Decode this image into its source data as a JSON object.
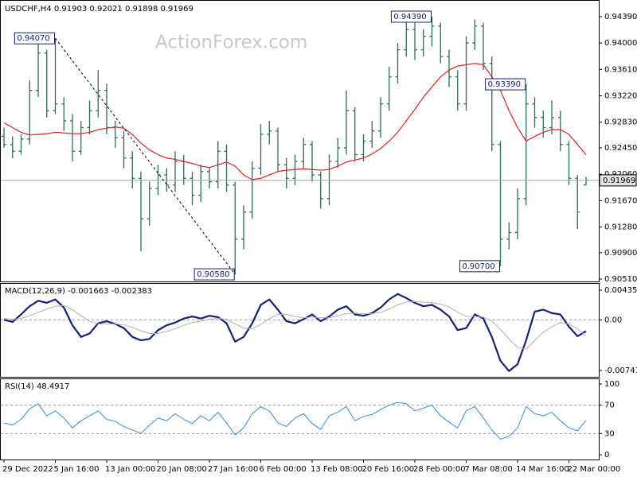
{
  "chart_data": [
    {
      "type": "ohlc",
      "title": "USDCHF,H4",
      "watermark": "ActionForex.com",
      "categories": [
        "29 Dec 2022",
        null,
        null,
        null,
        null,
        null,
        "5 Jan 16:00",
        null,
        null,
        null,
        null,
        null,
        "13 Jan 00:00",
        null,
        null,
        null,
        null,
        null,
        "20 Jan 08:00",
        null,
        null,
        null,
        null,
        null,
        "27 Jan 16:00",
        null,
        null,
        null,
        null,
        null,
        "6 Feb 00:00",
        null,
        null,
        null,
        null,
        null,
        "13 Feb 08:00",
        null,
        null,
        null,
        null,
        null,
        "20 Feb 16:00",
        null,
        null,
        null,
        null,
        null,
        "28 Feb 00:00",
        null,
        null,
        null,
        null,
        null,
        "7 Mar 08:00",
        null,
        null,
        null,
        null,
        null,
        "14 Mar 16:00",
        null,
        null,
        null,
        null,
        null,
        "22 Mar 00:00",
        null,
        null
      ],
      "series": [
        {
          "color": "#2f6b5e",
          "open": [
            0.9262,
            0.925,
            0.924,
            0.9258,
            0.933,
            0.9385,
            0.93,
            0.931,
            0.9285,
            0.924,
            0.9275,
            0.93,
            0.933,
            0.9275,
            0.926,
            0.923,
            0.92,
            0.914,
            0.9185,
            0.9205,
            0.919,
            0.9225,
            0.92,
            0.9175,
            0.921,
            0.9195,
            0.924,
            0.919,
            0.911,
            0.915,
            0.9215,
            0.9265,
            0.927,
            0.922,
            0.92,
            0.9225,
            0.925,
            0.9205,
            0.917,
            0.9225,
            0.9245,
            0.93,
            0.9235,
            0.9255,
            0.927,
            0.931,
            0.935,
            0.939,
            0.942,
            0.939,
            0.941,
            0.9425,
            0.938,
            0.935,
            0.931,
            0.94,
            0.9425,
            0.937,
            0.925,
            0.911,
            0.912,
            0.917,
            0.931,
            0.929,
            0.9275,
            0.929,
            0.925,
            0.92,
            0.91903
          ],
          "high": [
            0.9275,
            0.9262,
            0.9265,
            0.9345,
            0.94,
            0.939,
            0.9407,
            0.932,
            0.9295,
            0.9285,
            0.9315,
            0.936,
            0.934,
            0.9285,
            0.927,
            0.924,
            0.921,
            0.9195,
            0.922,
            0.9215,
            0.924,
            0.9235,
            0.921,
            0.922,
            0.9215,
            0.9255,
            0.925,
            0.9195,
            0.916,
            0.9225,
            0.928,
            0.9285,
            0.9275,
            0.923,
            0.9235,
            0.926,
            0.9255,
            0.921,
            0.9235,
            0.926,
            0.933,
            0.9305,
            0.9265,
            0.9285,
            0.932,
            0.9365,
            0.94,
            0.9435,
            0.943,
            0.942,
            0.9439,
            0.943,
            0.939,
            0.936,
            0.941,
            0.9435,
            0.943,
            0.938,
            0.9255,
            0.9135,
            0.9185,
            0.9339,
            0.932,
            0.93,
            0.9315,
            0.93,
            0.9255,
            0.9205,
            0.92021
          ],
          "low": [
            0.9245,
            0.923,
            0.9235,
            0.925,
            0.932,
            0.929,
            0.9295,
            0.927,
            0.9225,
            0.9235,
            0.9265,
            0.929,
            0.9265,
            0.9245,
            0.9215,
            0.9185,
            0.9092,
            0.913,
            0.9175,
            0.918,
            0.918,
            0.919,
            0.916,
            0.9165,
            0.9185,
            0.9185,
            0.918,
            0.9058,
            0.9095,
            0.914,
            0.9205,
            0.925,
            0.921,
            0.9185,
            0.919,
            0.9215,
            0.9195,
            0.9155,
            0.916,
            0.9215,
            0.9235,
            0.9225,
            0.9225,
            0.9245,
            0.926,
            0.93,
            0.934,
            0.938,
            0.9375,
            0.938,
            0.9395,
            0.937,
            0.9335,
            0.93,
            0.93,
            0.939,
            0.936,
            0.924,
            0.907,
            0.9095,
            0.911,
            0.916,
            0.9275,
            0.926,
            0.9265,
            0.924,
            0.919,
            0.9125,
            0.91898
          ],
          "close": [
            0.925,
            0.924,
            0.9258,
            0.933,
            0.9385,
            0.93,
            0.931,
            0.9285,
            0.924,
            0.9275,
            0.93,
            0.933,
            0.9275,
            0.926,
            0.923,
            0.92,
            0.914,
            0.9185,
            0.9205,
            0.919,
            0.9225,
            0.92,
            0.9175,
            0.921,
            0.9195,
            0.924,
            0.919,
            0.911,
            0.915,
            0.9215,
            0.9265,
            0.927,
            0.922,
            0.92,
            0.9225,
            0.925,
            0.9205,
            0.917,
            0.9225,
            0.9245,
            0.93,
            0.9235,
            0.9255,
            0.927,
            0.931,
            0.935,
            0.939,
            0.942,
            0.939,
            0.941,
            0.9425,
            0.938,
            0.935,
            0.931,
            0.94,
            0.9425,
            0.937,
            0.925,
            0.911,
            0.912,
            0.917,
            0.931,
            0.929,
            0.9275,
            0.929,
            0.925,
            0.92,
            0.915,
            0.91969
          ]
        },
        {
          "color": "#e02020",
          "values": [
            0.9282,
            0.9275,
            0.9268,
            0.9264,
            0.9265,
            0.9266,
            0.9268,
            0.9267,
            0.9266,
            0.9266,
            0.9268,
            0.9272,
            0.9274,
            0.9276,
            0.9274,
            0.9265,
            0.9252,
            0.9242,
            0.9235,
            0.923,
            0.9228,
            0.9225,
            0.9222,
            0.9218,
            0.9216,
            0.922,
            0.9224,
            0.9218,
            0.9205,
            0.9198,
            0.92,
            0.9205,
            0.921,
            0.9212,
            0.9213,
            0.9214,
            0.9213,
            0.9212,
            0.9213,
            0.9218,
            0.9224,
            0.9227,
            0.923,
            0.9236,
            0.9244,
            0.9255,
            0.9268,
            0.9285,
            0.9302,
            0.932,
            0.9335,
            0.935,
            0.936,
            0.9366,
            0.9368,
            0.937,
            0.9368,
            0.935,
            0.933,
            0.93,
            0.9275,
            0.9255,
            0.9262,
            0.9268,
            0.9272,
            0.9272,
            0.9265,
            0.925,
            0.9235
          ]
        }
      ],
      "ylim": [
        0.90475,
        0.94613
      ],
      "yticks": [
        {
          "value": 0.9051,
          "label": "0.90510"
        },
        {
          "value": 0.909,
          "label": "0.90900"
        },
        {
          "value": 0.9128,
          "label": "0.91280"
        },
        {
          "value": 0.9167,
          "label": "0.91670"
        },
        {
          "value": 0.9206,
          "label": "0.92060"
        },
        {
          "value": 0.9245,
          "label": "0.92450"
        },
        {
          "value": 0.9283,
          "label": "0.92830"
        },
        {
          "value": 0.9322,
          "label": "0.93220"
        },
        {
          "value": 0.9361,
          "label": "0.93610"
        },
        {
          "value": 0.94,
          "label": "0.94000"
        },
        {
          "value": 0.9439,
          "label": "0.94390"
        }
      ],
      "annotations": [
        {
          "value": 0.9407,
          "label": "0.94070"
        },
        {
          "value": 0.9058,
          "label": "0.90580"
        },
        {
          "value": 0.9439,
          "label": "0.94390"
        },
        {
          "value": 0.9339,
          "label": "0.93390"
        },
        {
          "value": 0.907,
          "label": "0.90700"
        }
      ]
    },
    {
      "type": "line",
      "title": "MACD(12,26,9)",
      "series": [
        {
          "color": "#15207a",
          "width": 2.2,
          "values": [
            0.0,
            -0.0003,
            0.0008,
            0.002,
            0.0028,
            0.0025,
            0.003,
            0.0018,
            -0.0008,
            -0.0025,
            -0.002,
            -0.0005,
            -0.0002,
            -0.0006,
            -0.0012,
            -0.0025,
            -0.003,
            -0.0028,
            -0.0015,
            -0.0008,
            -0.0004,
            0.0002,
            0.0005,
            0.0002,
            0.0006,
            0.0004,
            -0.0005,
            -0.0032,
            -0.0025,
            -0.0005,
            0.0022,
            0.003,
            0.0015,
            -0.0002,
            -0.0005,
            0.0001,
            0.0008,
            -0.0002,
            0.0005,
            0.0015,
            0.002,
            0.0008,
            0.0006,
            0.001,
            0.0018,
            0.003,
            0.0038,
            0.0032,
            0.0025,
            0.002,
            0.0022,
            0.0015,
            0.0005,
            -0.0015,
            -0.0012,
            0.0008,
            0.0002,
            -0.0025,
            -0.006,
            -0.0075,
            -0.0065,
            -0.003,
            0.0012,
            0.0015,
            0.001,
            0.0008,
            -0.001,
            -0.0024,
            -0.001663
          ]
        },
        {
          "color": "#b0b0b0",
          "width": 1,
          "values": [
            0.0002,
            0.0001,
            0.0002,
            0.0006,
            0.0011,
            0.0016,
            0.002,
            0.0021,
            0.0015,
            0.0006,
            -0.0002,
            -0.0006,
            -0.0006,
            -0.0006,
            -0.0007,
            -0.0011,
            -0.0016,
            -0.002,
            -0.002,
            -0.0017,
            -0.0013,
            -0.0008,
            -0.0004,
            -0.0002,
            0.0001,
            0.0002,
            0.0001,
            -0.0006,
            -0.0012,
            -0.0013,
            -0.0007,
            0.0002,
            0.0008,
            0.0008,
            0.0005,
            0.0003,
            0.0004,
            0.0003,
            0.0003,
            0.0006,
            0.0009,
            0.001,
            0.0009,
            0.0009,
            0.0011,
            0.0016,
            0.0022,
            0.0026,
            0.0027,
            0.0026,
            0.0025,
            0.0023,
            0.0019,
            0.0011,
            0.0005,
            0.0005,
            0.0004,
            -0.0002,
            -0.0014,
            -0.0028,
            -0.004,
            -0.0043,
            -0.003,
            -0.0018,
            -0.001,
            -0.0004,
            -0.0006,
            -0.0013,
            -0.002383
          ]
        }
      ],
      "ylim": [
        -0.008349,
        0.005286
      ],
      "yticks": [
        -0.007417,
        {
          "value": 0,
          "label": "0.00"
        },
        0.004354
      ],
      "levels": [
        0
      ]
    },
    {
      "type": "line",
      "title": "RSI(14)",
      "series": [
        {
          "color": "#2f8fd8",
          "width": 1,
          "values": [
            45,
            42,
            50,
            65,
            72,
            55,
            62,
            52,
            38,
            48,
            55,
            62,
            50,
            47,
            40,
            35,
            30,
            42,
            52,
            48,
            58,
            50,
            44,
            55,
            48,
            60,
            45,
            28,
            38,
            58,
            68,
            62,
            45,
            40,
            52,
            58,
            44,
            36,
            55,
            60,
            68,
            48,
            54,
            57,
            64,
            70,
            74,
            72,
            62,
            66,
            70,
            55,
            46,
            38,
            62,
            68,
            52,
            35,
            22,
            26,
            38,
            68,
            58,
            55,
            60,
            48,
            38,
            34,
            48.4917
          ]
        }
      ],
      "ylim": [
        -6.7,
        106.7
      ],
      "yticks": [
        0,
        30,
        70,
        100
      ],
      "levels": [
        30,
        70
      ]
    }
  ]
}
